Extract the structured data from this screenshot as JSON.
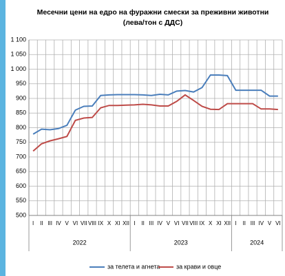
{
  "chart_data": {
    "type": "line",
    "title": "Месечни цени на едро на фуражни смески за преживни животни",
    "subtitle": "(лева/тон с ДДС)",
    "groups": [
      {
        "name": "2022",
        "categories": [
          "I",
          "II",
          "III",
          "IV",
          "V",
          "VI",
          "VII",
          "VIII",
          "IX",
          "X",
          "XI",
          "XII"
        ]
      },
      {
        "name": "2023",
        "categories": [
          "I",
          "II",
          "III",
          "IV",
          "V",
          "VI",
          "VII",
          "VIII",
          "IX",
          "X",
          "XI",
          "XII"
        ]
      },
      {
        "name": "2024",
        "categories": [
          "I",
          "II",
          "III",
          "IV",
          "V",
          "VI"
        ]
      }
    ],
    "series": [
      {
        "name": "за телета и агнета",
        "color": "#4a7ebb",
        "values": [
          778,
          795,
          793,
          797,
          808,
          860,
          873,
          874,
          910,
          912,
          913,
          913,
          913,
          912,
          910,
          914,
          912,
          925,
          927,
          922,
          937,
          980,
          980,
          978,
          928,
          928,
          928,
          928,
          908,
          908
        ]
      },
      {
        "name": "за крави и овце",
        "color": "#be4b48",
        "values": [
          720,
          745,
          755,
          762,
          770,
          825,
          833,
          835,
          868,
          876,
          876,
          877,
          878,
          880,
          878,
          874,
          874,
          890,
          912,
          893,
          873,
          863,
          862,
          882,
          882,
          882,
          882,
          864,
          864,
          862
        ]
      }
    ],
    "ylim": [
      500,
      1100
    ],
    "yticks": [
      500,
      550,
      600,
      650,
      700,
      750,
      800,
      850,
      900,
      950,
      {
        "value": 1000,
        "label": "1 000"
      },
      {
        "value": 1050,
        "label": "1 050"
      },
      {
        "value": 1100,
        "label": "1 100"
      }
    ],
    "grid": true,
    "legend": "bottom"
  }
}
